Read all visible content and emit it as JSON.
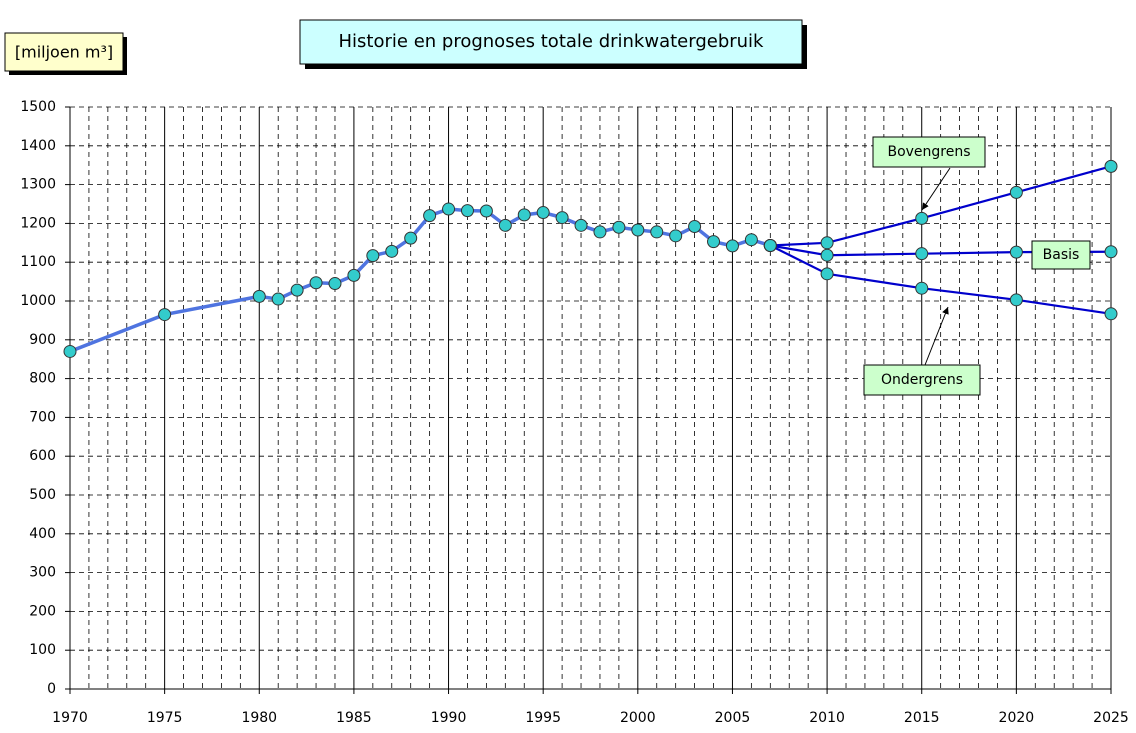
{
  "chart_data": {
    "type": "line",
    "title": "Historie en prognoses totale drinkwatergebruik",
    "y_label": "[miljoen m³]",
    "xlim": [
      1970,
      2025
    ],
    "xticks": [
      1970,
      1975,
      1980,
      1985,
      1990,
      1995,
      2000,
      2005,
      2010,
      2015,
      2020,
      2025
    ],
    "xminorticks": [
      1971,
      1972,
      1973,
      1974,
      1976,
      1977,
      1978,
      1979,
      1981,
      1982,
      1983,
      1984,
      1986,
      1987,
      1988,
      1989,
      1991,
      1992,
      1993,
      1994,
      1996,
      1997,
      1998,
      1999,
      2001,
      2002,
      2003,
      2004,
      2006,
      2007,
      2008,
      2009,
      2011,
      2012,
      2013,
      2014,
      2016,
      2017,
      2018,
      2019,
      2021,
      2022,
      2023,
      2024
    ],
    "ylim": [
      0,
      1500
    ],
    "yticks": [
      0,
      100,
      200,
      300,
      400,
      500,
      600,
      700,
      800,
      900,
      1000,
      1100,
      1200,
      1300,
      1400,
      1500
    ],
    "grid": true,
    "marker_color": "#33cccc",
    "series": [
      {
        "color": "#4f74e0",
        "x": [
          1970,
          1975,
          1980,
          1981,
          1982,
          1983,
          1984,
          1985,
          1986,
          1987,
          1988,
          1989,
          1990,
          1991,
          1992,
          1993,
          1994,
          1995,
          1996,
          1997,
          1998,
          1999,
          2000,
          2001,
          2002,
          2003,
          2004,
          2005,
          2006,
          2007
        ],
        "values": [
          870,
          965,
          1012,
          1005,
          1028,
          1047,
          1045,
          1066,
          1117,
          1128,
          1162,
          1220,
          1237,
          1233,
          1232,
          1195,
          1222,
          1228,
          1215,
          1195,
          1178,
          1190,
          1183,
          1178,
          1168,
          1192,
          1153,
          1142,
          1158,
          1143
        ]
      },
      {
        "name": "Bovengrens",
        "color": "#0000cc",
        "x": [
          2007,
          2010,
          2015,
          2020,
          2025
        ],
        "values": [
          1143,
          1150,
          1213,
          1280,
          1347
        ]
      },
      {
        "name": "Basis",
        "color": "#0000cc",
        "x": [
          2007,
          2010,
          2015,
          2020,
          2025
        ],
        "values": [
          1143,
          1118,
          1122,
          1126,
          1127
        ]
      },
      {
        "name": "Ondergrens",
        "color": "#0000cc",
        "x": [
          2007,
          2010,
          2015,
          2020,
          2025
        ],
        "values": [
          1143,
          1070,
          1033,
          1003,
          967
        ]
      }
    ]
  }
}
